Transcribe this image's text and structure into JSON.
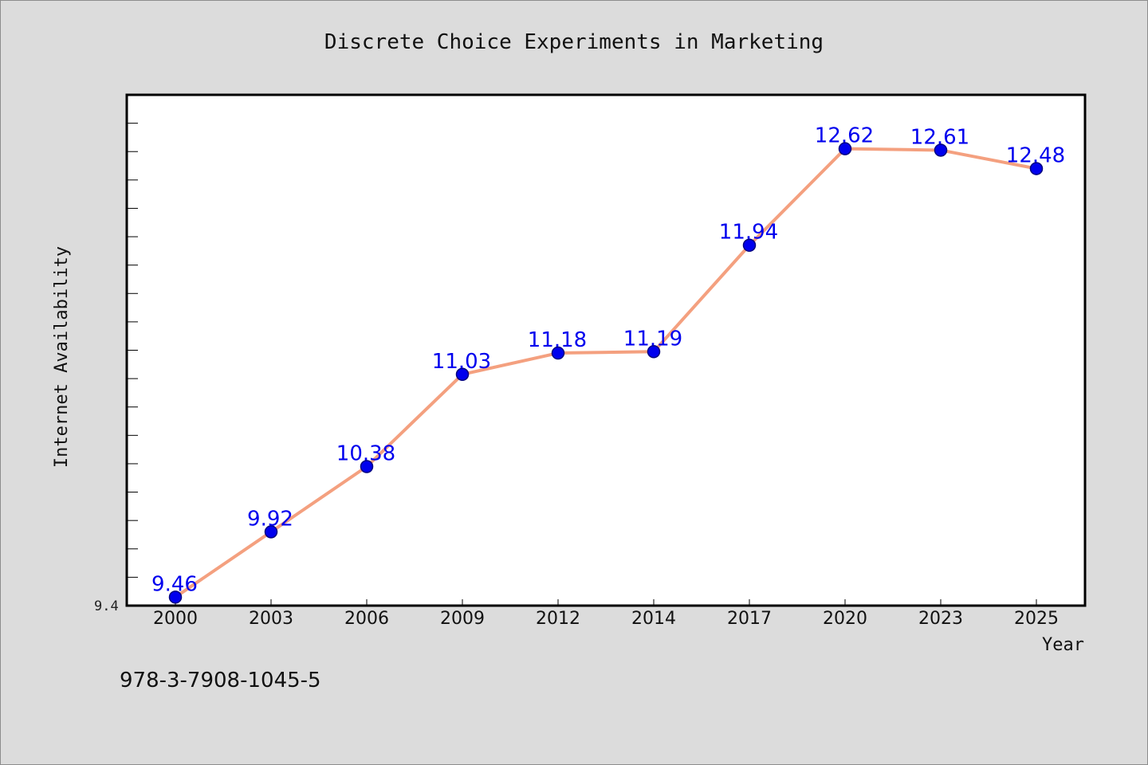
{
  "colors": {
    "background": "#dcdcdc",
    "plot_background": "#ffffff",
    "line": "#f4a07f",
    "marker": "#0000ee",
    "marker_edge": "#000080",
    "data_label": "#0000ee",
    "axis": "#000000"
  },
  "isbn": "978-3-7908-1045-5",
  "y_min_label": "9.4",
  "chart_data": {
    "type": "line",
    "title": "Discrete Choice Experiments in Marketing",
    "xlabel": "Year",
    "ylabel": "Internet Availability",
    "categories": [
      "2000",
      "2003",
      "2006",
      "2009",
      "2012",
      "2014",
      "2017",
      "2020",
      "2023",
      "2025"
    ],
    "series": [
      {
        "values": [
          9.46,
          9.92,
          10.38,
          11.03,
          11.18,
          11.19,
          11.94,
          12.62,
          12.61,
          12.48
        ],
        "labels": [
          "9.46",
          "9.92",
          "10.38",
          "11.03",
          "11.18",
          "11.19",
          "11.94",
          "12.62",
          "12.61",
          "12.48"
        ]
      }
    ],
    "ylim": [
      9.4,
      13.0
    ],
    "grid": false,
    "legend": "none"
  }
}
